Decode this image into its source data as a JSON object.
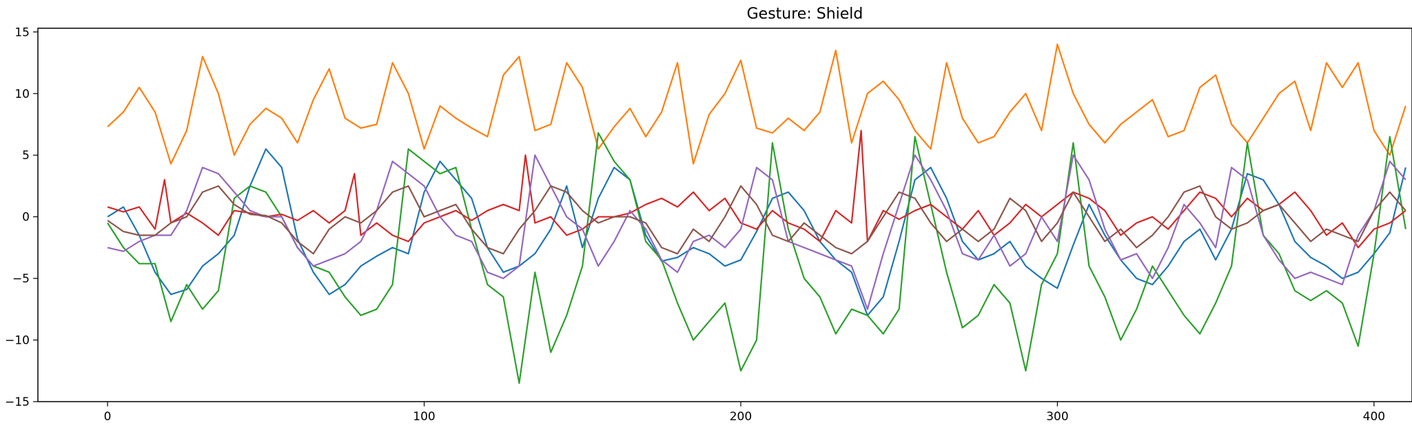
{
  "chart_data": {
    "type": "line",
    "title": "Gesture: Shield",
    "xlabel": "",
    "ylabel": "",
    "xlim": [
      -22,
      412
    ],
    "ylim": [
      -15,
      15.3
    ],
    "xticks": [
      0,
      100,
      200,
      300,
      400
    ],
    "yticks": [
      -15,
      -10,
      -5,
      0,
      5,
      10,
      15
    ],
    "grid": false,
    "legend": "none",
    "series": [
      {
        "color": "#1f77b4",
        "x": [
          0,
          5,
          10,
          15,
          20,
          25,
          30,
          35,
          40,
          45,
          50,
          55,
          60,
          65,
          70,
          75,
          80,
          85,
          90,
          95,
          100,
          105,
          110,
          115,
          120,
          125,
          130,
          135,
          140,
          145,
          150,
          155,
          160,
          165,
          170,
          175,
          180,
          185,
          190,
          195,
          200,
          205,
          210,
          215,
          220,
          225,
          230,
          235,
          240,
          245,
          250,
          255,
          260,
          265,
          270,
          275,
          280,
          285,
          290,
          295,
          300,
          305,
          310,
          315,
          320,
          325,
          330,
          335,
          340,
          345,
          350,
          355,
          360,
          365,
          370,
          375,
          380,
          385,
          390,
          395,
          400,
          405,
          410
        ],
        "y": [
          0,
          0.8,
          -1.5,
          -4.5,
          -6.3,
          -5.9,
          -4,
          -3,
          -1.5,
          2.5,
          5.5,
          4,
          -1.8,
          -4.5,
          -6.3,
          -5.5,
          -4,
          -3.2,
          -2.5,
          -3,
          2,
          4.5,
          3,
          1.5,
          -2.5,
          -4.5,
          -4,
          -3,
          -1,
          2.5,
          -2.5,
          1.5,
          4,
          3,
          -1.5,
          -3.6,
          -3.3,
          -2.5,
          -3,
          -4,
          -3.5,
          -1.2,
          1.5,
          2,
          0.5,
          -2,
          -3.5,
          -4.5,
          -8,
          -6.5,
          -2,
          3,
          4,
          1.5,
          -2,
          -3.5,
          -3,
          -2,
          -4,
          -5,
          -5.8,
          -2.3,
          1,
          -1.5,
          -3.5,
          -5,
          -5.5,
          -4,
          -2,
          -1,
          -3.5,
          -1,
          3.5,
          3,
          1,
          -2,
          -3.3,
          -4,
          -5,
          -4.5,
          -3,
          -1.3,
          4
        ]
      },
      {
        "color": "#ff7f0e",
        "x": [
          0,
          5,
          10,
          15,
          20,
          25,
          30,
          35,
          40,
          45,
          50,
          55,
          60,
          65,
          70,
          75,
          80,
          85,
          90,
          95,
          100,
          105,
          110,
          115,
          120,
          125,
          130,
          135,
          140,
          145,
          150,
          155,
          160,
          165,
          170,
          175,
          180,
          185,
          190,
          195,
          200,
          205,
          210,
          215,
          220,
          225,
          230,
          235,
          240,
          245,
          250,
          255,
          260,
          265,
          270,
          275,
          280,
          285,
          290,
          295,
          300,
          305,
          310,
          315,
          320,
          325,
          330,
          335,
          340,
          345,
          350,
          355,
          360,
          365,
          370,
          375,
          380,
          385,
          390,
          395,
          400,
          405,
          410
        ],
        "y": [
          7.3,
          8.5,
          10.5,
          8.5,
          4.3,
          7,
          13,
          10,
          5,
          7.5,
          8.8,
          8,
          6,
          9.5,
          12,
          8,
          7.2,
          7.5,
          12.5,
          10,
          5.5,
          9,
          8,
          7.2,
          6.5,
          11.5,
          13,
          7,
          7.5,
          12.5,
          10.5,
          5.5,
          7.3,
          8.8,
          6.5,
          8.5,
          12.5,
          4.3,
          8.3,
          10,
          12.7,
          7.2,
          6.8,
          8,
          7,
          8.5,
          13.5,
          6,
          10,
          11,
          9.5,
          7,
          5.5,
          12.5,
          8,
          6,
          6.5,
          8.5,
          10,
          7,
          14,
          10,
          7.5,
          6,
          7.5,
          8.5,
          9.5,
          6.5,
          7,
          10.5,
          11.5,
          7.5,
          6,
          8,
          10,
          11,
          7,
          12.5,
          10.5,
          12.5,
          7,
          5,
          9
        ]
      },
      {
        "color": "#2ca02c",
        "x": [
          0,
          5,
          10,
          15,
          20,
          25,
          30,
          35,
          40,
          45,
          50,
          55,
          60,
          65,
          70,
          75,
          80,
          85,
          90,
          95,
          100,
          105,
          110,
          115,
          120,
          125,
          130,
          135,
          140,
          145,
          150,
          155,
          160,
          165,
          170,
          175,
          180,
          185,
          190,
          195,
          200,
          205,
          210,
          215,
          220,
          225,
          230,
          235,
          240,
          245,
          250,
          255,
          260,
          265,
          270,
          275,
          280,
          285,
          290,
          295,
          300,
          305,
          310,
          315,
          320,
          325,
          330,
          335,
          340,
          345,
          350,
          355,
          360,
          365,
          370,
          375,
          380,
          385,
          390,
          395,
          400,
          405,
          410
        ],
        "y": [
          -0.5,
          -2.5,
          -3.8,
          -3.8,
          -8.5,
          -5.5,
          -7.5,
          -6,
          1.5,
          2.5,
          2,
          0,
          -2.5,
          -4,
          -4.5,
          -6.5,
          -8,
          -7.5,
          -5.5,
          5.5,
          4.5,
          3.5,
          4,
          -1,
          -5.5,
          -6.5,
          -13.5,
          -4.5,
          -11,
          -8,
          -4,
          6.8,
          4.5,
          3,
          -2,
          -3.5,
          -7,
          -10,
          -8.5,
          -7,
          -12.5,
          -10,
          6,
          -1,
          -5,
          -6.5,
          -9.5,
          -7.5,
          -8,
          -9.5,
          -7.5,
          6.5,
          1,
          -4.5,
          -9,
          -8,
          -5.5,
          -7,
          -12.5,
          -5.5,
          -3,
          6,
          -4,
          -6.5,
          -10,
          -7.5,
          -4,
          -6,
          -8,
          -9.5,
          -7,
          -4,
          6,
          -1.5,
          -3,
          -6,
          -6.8,
          -6,
          -7,
          -10.5,
          -3,
          6.5,
          -1
        ]
      },
      {
        "color": "#d62728",
        "x": [
          0,
          5,
          10,
          15,
          18,
          20,
          25,
          30,
          35,
          40,
          45,
          50,
          55,
          60,
          65,
          70,
          75,
          78,
          80,
          85,
          90,
          95,
          100,
          105,
          110,
          115,
          120,
          125,
          130,
          132,
          135,
          140,
          145,
          150,
          155,
          160,
          165,
          170,
          175,
          180,
          185,
          190,
          195,
          200,
          205,
          210,
          215,
          220,
          225,
          230,
          235,
          238,
          240,
          245,
          250,
          255,
          260,
          265,
          270,
          275,
          280,
          285,
          290,
          295,
          300,
          305,
          310,
          315,
          320,
          325,
          330,
          335,
          340,
          345,
          350,
          355,
          360,
          365,
          370,
          375,
          380,
          385,
          390,
          395,
          400,
          405,
          410
        ],
        "y": [
          0.8,
          0.4,
          0.8,
          -1,
          3,
          -0.5,
          0.3,
          -0.5,
          -1.5,
          0.5,
          0.3,
          0,
          0.2,
          -0.3,
          0.5,
          -0.5,
          0.5,
          3.5,
          -1.5,
          -0.5,
          -1.5,
          -2,
          -0.5,
          0,
          0.5,
          -0.3,
          0.5,
          1,
          0.5,
          5,
          -0.5,
          0,
          -1.5,
          -1,
          0,
          0,
          0.3,
          1,
          1.5,
          0.8,
          2,
          0.5,
          1.5,
          -0.5,
          -1,
          0.5,
          -0.5,
          -1,
          -2,
          0.5,
          -0.5,
          7,
          -2,
          0.5,
          -0.2,
          0.5,
          1,
          0,
          -1,
          0.5,
          -1.5,
          -0.5,
          1,
          0,
          1,
          2,
          1.5,
          0.5,
          -1.5,
          -0.5,
          0,
          -1,
          0.5,
          2,
          1.5,
          0,
          1.5,
          0.5,
          1,
          2,
          0.5,
          -1.5,
          -0.5,
          -2.5,
          -1,
          -0.5,
          0.5
        ]
      },
      {
        "color": "#9467bd",
        "x": [
          0,
          5,
          10,
          15,
          20,
          25,
          30,
          35,
          40,
          45,
          50,
          55,
          60,
          65,
          70,
          75,
          80,
          85,
          90,
          95,
          100,
          105,
          110,
          115,
          120,
          125,
          130,
          135,
          140,
          145,
          150,
          155,
          160,
          165,
          170,
          175,
          180,
          185,
          190,
          195,
          200,
          205,
          210,
          215,
          220,
          225,
          230,
          235,
          240,
          245,
          250,
          255,
          260,
          265,
          270,
          275,
          280,
          285,
          290,
          295,
          300,
          305,
          310,
          315,
          320,
          325,
          330,
          335,
          340,
          345,
          350,
          355,
          360,
          365,
          370,
          375,
          380,
          385,
          390,
          395,
          400,
          405,
          410
        ],
        "y": [
          -2.5,
          -2.8,
          -2,
          -1.5,
          -1.5,
          0.5,
          4,
          3.5,
          2,
          0.5,
          0,
          0,
          -2.5,
          -4,
          -3.5,
          -3,
          -2,
          0.5,
          4.5,
          3.5,
          2.5,
          0,
          -1.5,
          -2,
          -4.5,
          -5,
          -4,
          5,
          2.5,
          0,
          -1,
          -4,
          -2,
          0.5,
          -1,
          -3.5,
          -4.5,
          -2,
          -1.5,
          -2.5,
          -1,
          4,
          3,
          -2,
          -2.5,
          -3,
          -3.5,
          -4,
          -7.5,
          -3,
          1,
          5,
          3,
          0.5,
          -3,
          -3.5,
          -1.5,
          -4,
          -3,
          0,
          -2,
          5,
          3,
          -1,
          -3.5,
          -3,
          -5,
          -2.5,
          1,
          -0.5,
          -2.5,
          4,
          3,
          -1.5,
          -3.5,
          -5,
          -4.5,
          -5,
          -5.5,
          -1.5,
          0.5,
          4.5,
          3
        ]
      },
      {
        "color": "#8c564b",
        "x": [
          0,
          5,
          10,
          15,
          20,
          25,
          30,
          35,
          40,
          45,
          50,
          55,
          60,
          65,
          70,
          75,
          80,
          85,
          90,
          95,
          100,
          105,
          110,
          115,
          120,
          125,
          130,
          135,
          140,
          145,
          150,
          155,
          160,
          165,
          170,
          175,
          180,
          185,
          190,
          195,
          200,
          205,
          210,
          215,
          220,
          225,
          230,
          235,
          240,
          245,
          250,
          255,
          260,
          265,
          270,
          275,
          280,
          285,
          290,
          295,
          300,
          305,
          310,
          315,
          320,
          325,
          330,
          335,
          340,
          345,
          350,
          355,
          360,
          365,
          370,
          375,
          380,
          385,
          390,
          395,
          400,
          405,
          410
        ],
        "y": [
          -0.3,
          -1.2,
          -1.5,
          -1.5,
          -0.5,
          0,
          2,
          2.5,
          1,
          0.2,
          0.1,
          -0.5,
          -2,
          -3,
          -1,
          0,
          -0.5,
          0.5,
          2,
          2.5,
          0,
          0.5,
          1,
          -1,
          -2.5,
          -3,
          -1,
          0.5,
          2.5,
          2,
          0.5,
          -0.5,
          0,
          0,
          -0.5,
          -2.5,
          -3,
          -1,
          -2,
          0,
          2.5,
          1,
          -1.5,
          -2,
          -0.5,
          -1.5,
          -2.5,
          -3,
          -2,
          0,
          2,
          1.5,
          -0.5,
          -2,
          -1,
          -2,
          -1,
          1.5,
          0.5,
          -2,
          -0.5,
          2,
          0,
          -2,
          -1,
          -2.5,
          -1.5,
          0,
          2,
          2.5,
          0,
          -1,
          -0.5,
          0.5,
          1,
          -0.5,
          -2,
          -1,
          -1.5,
          -2,
          0.5,
          2,
          0.5
        ]
      }
    ]
  }
}
